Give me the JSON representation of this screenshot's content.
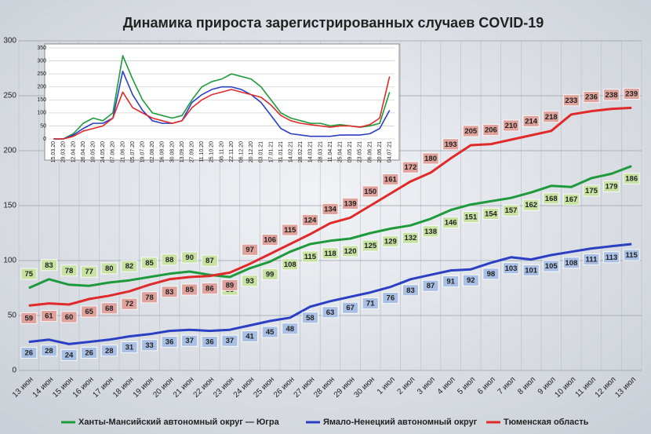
{
  "chart_data": [
    {
      "type": "line",
      "title": "Динамика прироста зарегистрированных случаев COVID-19",
      "categories": [
        "13 июн",
        "14 июн",
        "15 июн",
        "16 июн",
        "17 июн",
        "18 июн",
        "19 июн",
        "20 июн",
        "21 июн",
        "22 июн",
        "23 июн",
        "24 июн",
        "25 июн",
        "26 июн",
        "27 июн",
        "28 июн",
        "29 июн",
        "30 июн",
        "1 июл",
        "2 июл",
        "3 июл",
        "4 июл",
        "5 июл",
        "6 июл",
        "7 июл",
        "8 июл",
        "9 июл",
        "10 июл",
        "11 июл",
        "12 июл",
        "13 июл"
      ],
      "series": [
        {
          "name": "Ханты-Мансийский автономный округ — Югра",
          "color": "#1e9a3c",
          "values": [
            75,
            83,
            78,
            77,
            80,
            82,
            85,
            88,
            90,
            87,
            85,
            93,
            99,
            108,
            115,
            118,
            120,
            125,
            129,
            132,
            138,
            146,
            151,
            154,
            157,
            162,
            168,
            167,
            175,
            179,
            186
          ]
        },
        {
          "name": "Ямало-Ненецкий автономный округ",
          "color": "#2a3fc4",
          "values": [
            26,
            28,
            24,
            26,
            28,
            31,
            33,
            36,
            37,
            36,
            37,
            41,
            45,
            48,
            58,
            63,
            67,
            71,
            76,
            83,
            87,
            91,
            92,
            98,
            103,
            101,
            105,
            108,
            111,
            113,
            115
          ]
        },
        {
          "name": "Тюменская область",
          "color": "#e02a2a",
          "values": [
            59,
            61,
            60,
            65,
            68,
            72,
            78,
            83,
            85,
            86,
            89,
            97,
            106,
            115,
            124,
            134,
            139,
            150,
            161,
            172,
            180,
            193,
            205,
            206,
            210,
            214,
            218,
            233,
            236,
            238,
            239
          ]
        }
      ],
      "ylim": [
        0,
        300
      ],
      "yticks": [
        0,
        50,
        100,
        150,
        200,
        250,
        300
      ],
      "grid": true
    },
    {
      "type": "line",
      "categories": [
        "15.03.20",
        "29.03.20",
        "12.04.20",
        "26.04.20",
        "10.05.20",
        "24.05.20",
        "07.06.20",
        "21.06.20",
        "05.07.20",
        "19.07.20",
        "02.08.20",
        "16.08.20",
        "30.08.20",
        "13.09.20",
        "27.09.20",
        "11.10.20",
        "25.10.20",
        "08.11.20",
        "22.11.20",
        "06.12.20",
        "20.12.20",
        "03.01.21",
        "17.01.21",
        "31.01.21",
        "14.02.21",
        "28.02.21",
        "14.03.21",
        "28.03.21",
        "11.04.21",
        "25.04.21",
        "09.05.21",
        "23.05.21",
        "06.06.21",
        "20.06.21",
        "04.07.21"
      ],
      "series": [
        {
          "color": "#1e9a3c",
          "values": [
            0,
            0,
            20,
            60,
            80,
            70,
            100,
            320,
            230,
            150,
            100,
            90,
            80,
            90,
            150,
            200,
            220,
            230,
            250,
            240,
            230,
            200,
            150,
            100,
            80,
            70,
            60,
            60,
            50,
            55,
            50,
            45,
            50,
            60,
            180
          ]
        },
        {
          "color": "#2a3fc4",
          "values": [
            0,
            0,
            15,
            40,
            60,
            60,
            80,
            260,
            170,
            110,
            70,
            60,
            60,
            70,
            140,
            170,
            190,
            200,
            200,
            190,
            170,
            140,
            90,
            40,
            20,
            15,
            10,
            10,
            10,
            15,
            15,
            15,
            20,
            40,
            110
          ]
        },
        {
          "color": "#e02a2a",
          "values": [
            0,
            0,
            10,
            30,
            40,
            50,
            80,
            180,
            120,
            100,
            80,
            70,
            60,
            70,
            120,
            150,
            170,
            180,
            190,
            180,
            170,
            160,
            130,
            90,
            70,
            60,
            55,
            50,
            45,
            50,
            50,
            45,
            55,
            80,
            240
          ]
        }
      ],
      "ylim": [
        0,
        350
      ],
      "yticks": [
        0,
        50,
        100,
        150,
        200,
        250,
        300,
        350
      ],
      "grid": true
    }
  ]
}
